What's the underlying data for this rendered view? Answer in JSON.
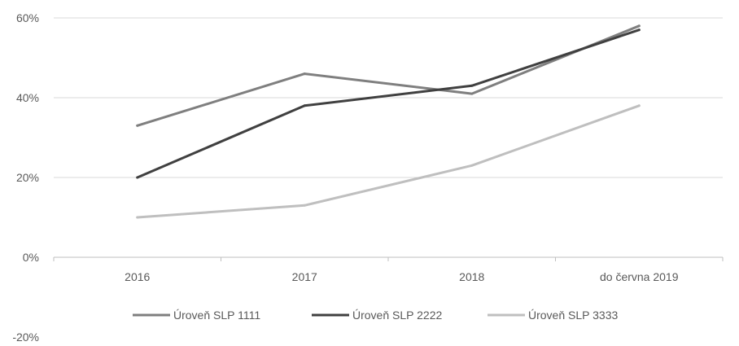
{
  "chart_data": {
    "type": "line",
    "categories": [
      "2016",
      "2017",
      "2018",
      "do června 2019"
    ],
    "series": [
      {
        "name": "Úroveň SLP 1111",
        "values": [
          33,
          46,
          41,
          58
        ],
        "color": "#7f7f7f"
      },
      {
        "name": "Úroveň SLP 2222",
        "values": [
          20,
          38,
          43,
          57
        ],
        "color": "#404040"
      },
      {
        "name": "Úroveň SLP 3333",
        "values": [
          10,
          13,
          23,
          38
        ],
        "color": "#bfbfbf"
      }
    ],
    "y_ticks": [
      60,
      40,
      20,
      0,
      -20
    ],
    "y_tick_labels": [
      "60%",
      "40%",
      "20%",
      "0%",
      "-20%"
    ],
    "ylim": [
      -20,
      60
    ],
    "grid": true,
    "legend_position": "bottom"
  }
}
